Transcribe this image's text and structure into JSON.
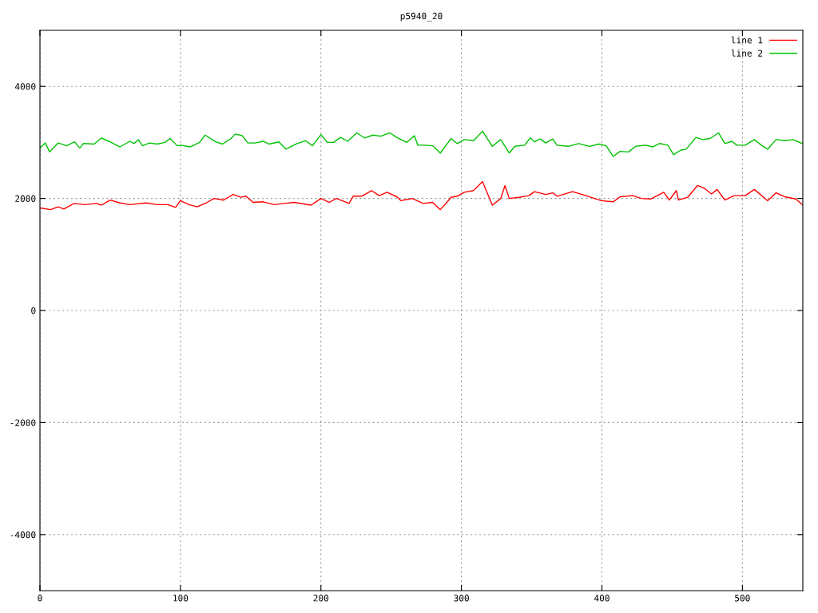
{
  "chart_data": {
    "type": "line",
    "title": "p5940_20",
    "xlim": [
      0,
      543
    ],
    "ylim": [
      -5000,
      5000
    ],
    "xticks": [
      0,
      100,
      200,
      300,
      400,
      500
    ],
    "yticks": [
      -4000,
      -2000,
      0,
      2000,
      4000
    ],
    "grid": true,
    "legend": "top right",
    "line_style": "solid",
    "marker": "none",
    "series": [
      {
        "name": "line 1",
        "color": "#ff0000",
        "x": [
          0,
          7.6,
          13,
          17,
          22.7,
          24.6,
          32,
          40,
          43.8,
          50,
          57,
          64,
          75.6,
          83.5,
          91,
          96.6,
          100,
          106,
          112,
          119,
          124,
          130.7,
          134.7,
          137.5,
          143,
          146.6,
          151.7,
          159,
          166.5,
          174,
          181,
          193,
          200,
          206,
          211,
          220,
          223,
          229,
          236,
          241.5,
          247,
          254,
          257,
          265,
          272.7,
          279.5,
          285,
          290,
          292.6,
          297,
          302,
          308.6,
          315,
          320,
          322,
          328,
          331,
          334,
          341,
          348,
          352,
          360,
          365,
          368,
          379,
          386,
          396,
          399.5,
          408,
          413,
          422,
          428,
          434.7,
          444,
          448,
          453,
          454.5,
          461,
          468,
          473,
          478,
          482,
          487.5,
          494,
          502,
          508.5,
          518,
          524,
          530,
          538,
          542.6
        ],
        "values": [
          1830,
          1800,
          1850,
          1810,
          1890,
          1910,
          1890,
          1910,
          1880,
          1970,
          1920,
          1890,
          1920,
          1890,
          1890,
          1840,
          1960,
          1890,
          1850,
          1930,
          2000,
          1970,
          2030,
          2070,
          2020,
          2040,
          1930,
          1940,
          1890,
          1910,
          1930,
          1880,
          2000,
          1930,
          2000,
          1910,
          2040,
          2040,
          2140,
          2050,
          2110,
          2030,
          1960,
          2000,
          1910,
          1930,
          1800,
          1940,
          2020,
          2040,
          2110,
          2140,
          2300,
          2000,
          1880,
          2000,
          2230,
          2000,
          2020,
          2050,
          2120,
          2070,
          2100,
          2040,
          2120,
          2070,
          1990,
          1960,
          1940,
          2030,
          2050,
          2000,
          1990,
          2110,
          1970,
          2140,
          1970,
          2020,
          2230,
          2180,
          2080,
          2160,
          1970,
          2050,
          2050,
          2160,
          1960,
          2100,
          2030,
          1990,
          1890
        ]
      },
      {
        "name": "line 2",
        "color": "#00c000",
        "x": [
          0,
          3.8,
          6.9,
          13,
          19,
          24.6,
          28.4,
          31,
          38.6,
          43.8,
          49,
          57,
          64,
          67,
          70,
          73,
          78,
          83.5,
          89,
          92.6,
          97.7,
          100,
          107,
          113.6,
          117.6,
          125,
          130,
          136,
          139,
          144,
          148,
          153,
          159,
          163,
          170,
          175,
          183,
          189,
          194,
          200,
          204.5,
          209,
          214,
          219,
          225.5,
          231,
          237,
          242.6,
          249,
          254,
          261,
          266.5,
          269,
          274,
          279.5,
          285,
          290,
          292.6,
          297,
          302,
          308.7,
          315,
          322,
          328,
          334,
          338,
          345,
          349,
          352,
          356,
          360,
          365,
          368,
          376,
          383.5,
          391,
          398,
          403,
          408,
          413,
          419,
          424,
          431,
          436,
          441,
          447,
          451,
          456,
          460,
          467,
          471.6,
          477,
          483,
          487.5,
          492.6,
          496,
          502,
          508.5,
          514,
          518,
          524,
          530,
          536,
          542.6
        ],
        "values": [
          2900,
          2990,
          2830,
          2990,
          2940,
          3010,
          2900,
          2980,
          2970,
          3080,
          3020,
          2920,
          3020,
          2980,
          3050,
          2940,
          2990,
          2970,
          3000,
          3070,
          2940,
          2950,
          2920,
          3000,
          3130,
          3010,
          2970,
          3070,
          3150,
          3120,
          2990,
          2990,
          3020,
          2970,
          3010,
          2880,
          2980,
          3030,
          2940,
          3140,
          3000,
          3000,
          3090,
          3020,
          3170,
          3080,
          3130,
          3110,
          3170,
          3090,
          3000,
          3120,
          2950,
          2950,
          2940,
          2810,
          2980,
          3070,
          2980,
          3050,
          3030,
          3200,
          2930,
          3050,
          2810,
          2930,
          2950,
          3080,
          3010,
          3060,
          2990,
          3060,
          2950,
          2930,
          2980,
          2930,
          2970,
          2940,
          2750,
          2840,
          2830,
          2930,
          2950,
          2920,
          2980,
          2950,
          2780,
          2860,
          2880,
          3090,
          3050,
          3070,
          3170,
          2980,
          3020,
          2950,
          2950,
          3050,
          2940,
          2880,
          3050,
          3030,
          3050,
          2980
        ]
      }
    ]
  }
}
